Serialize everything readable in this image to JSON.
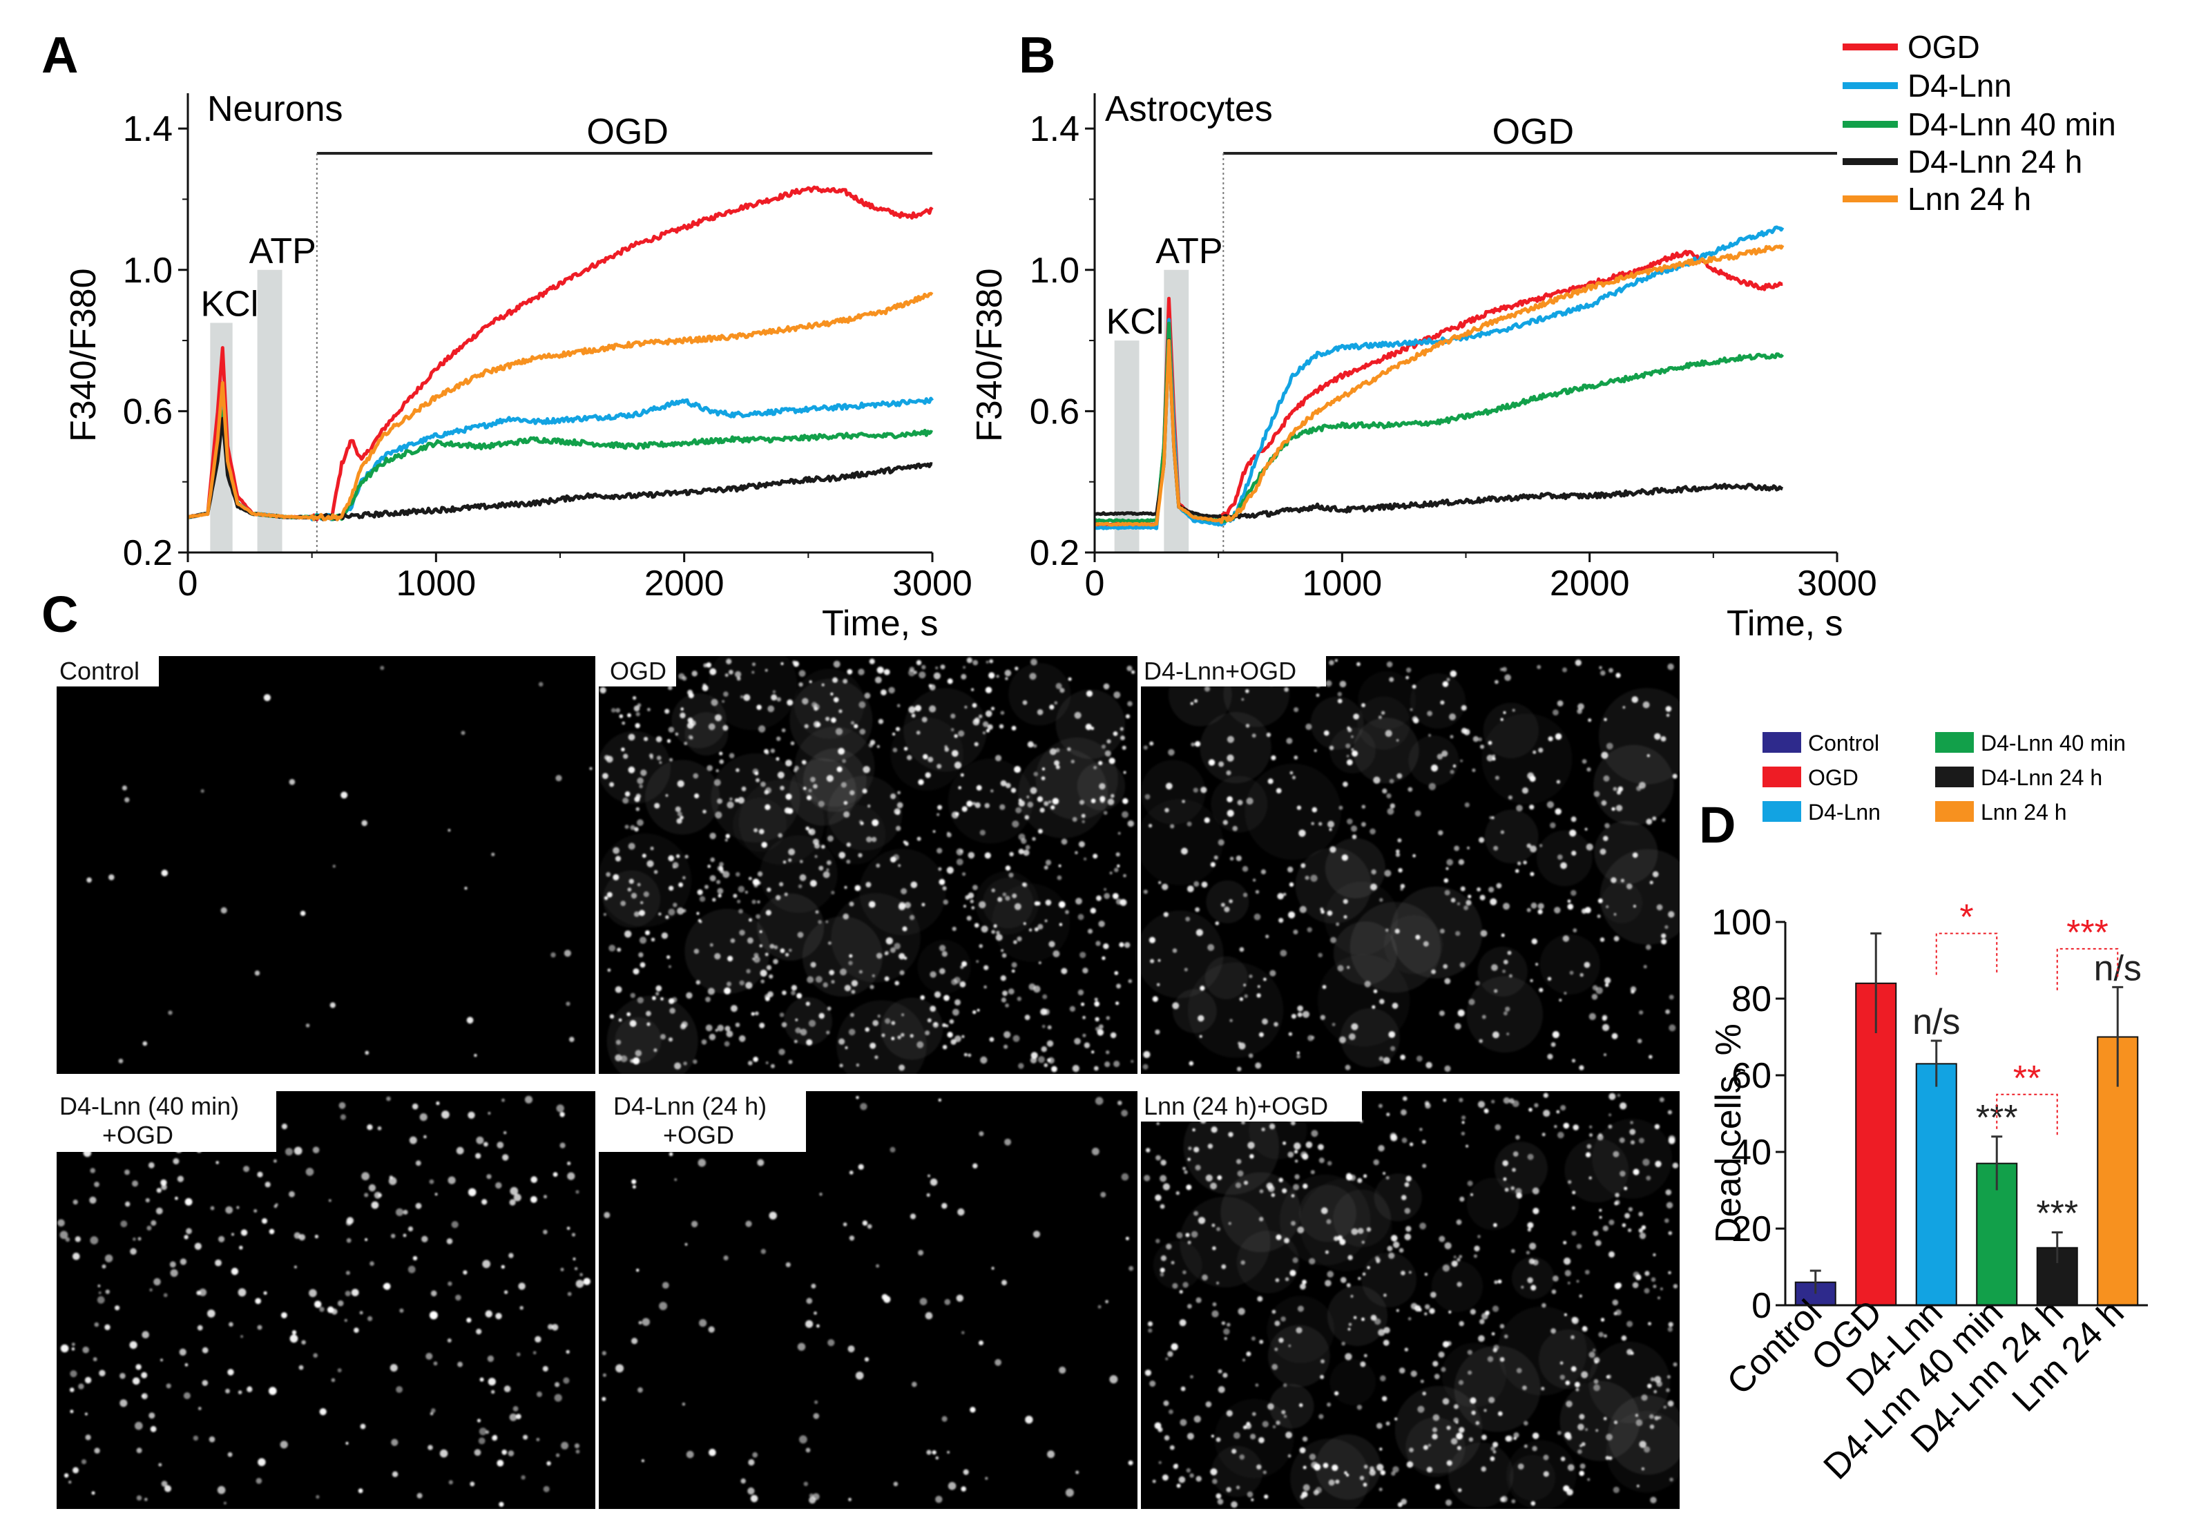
{
  "figure": {
    "panel_letters": [
      "A",
      "B",
      "C",
      "D"
    ]
  },
  "legend_AB": {
    "entries": [
      {
        "label": "OGD",
        "color": "#ee1c25"
      },
      {
        "label": "D4-Lnn",
        "color": "#12a3e2"
      },
      {
        "label": "D4-Lnn 40 min",
        "color": "#12a04a"
      },
      {
        "label": "D4-Lnn 24 h",
        "color": "#1a1a1a"
      },
      {
        "label": "Lnn 24 h",
        "color": "#f7911f"
      }
    ]
  },
  "chart_data": [
    {
      "id": "A",
      "type": "line",
      "cell_type": "Neurons",
      "xlabel": "Time, s",
      "ylabel": "F340/F380",
      "xlim": [
        0,
        3000
      ],
      "ylim": [
        0.2,
        1.5
      ],
      "xticks": [
        "0",
        "1000",
        "2000",
        "3000"
      ],
      "yticks": [
        "0.2",
        "0.6",
        "1.0",
        "1.4"
      ],
      "grey_bars": [
        {
          "label": "KCl",
          "x0": 90,
          "x1": 180,
          "top": 0.85
        },
        {
          "label": "ATP",
          "x0": 280,
          "x1": 380,
          "top": 1.0
        }
      ],
      "ogd_bar": {
        "label": "OGD",
        "x0": 520,
        "x1": 3000,
        "y": 1.33
      },
      "series": [
        {
          "name": "OGD",
          "color": "#ee1c25",
          "x": [
            0,
            80,
            120,
            140,
            160,
            200,
            260,
            400,
            580,
            620,
            660,
            700,
            800,
            1000,
            1200,
            1400,
            1600,
            1800,
            2000,
            2200,
            2400,
            2500,
            2650,
            2750,
            2900,
            3000
          ],
          "y": [
            0.3,
            0.31,
            0.6,
            0.78,
            0.5,
            0.36,
            0.31,
            0.3,
            0.3,
            0.45,
            0.52,
            0.46,
            0.56,
            0.72,
            0.84,
            0.92,
            1.0,
            1.07,
            1.12,
            1.17,
            1.21,
            1.23,
            1.22,
            1.18,
            1.15,
            1.17
          ]
        },
        {
          "name": "D4-Lnn",
          "color": "#12a3e2",
          "x": [
            0,
            80,
            120,
            140,
            160,
            200,
            260,
            400,
            620,
            660,
            700,
            800,
            1000,
            1200,
            1300,
            1400,
            1600,
            1800,
            2000,
            2100,
            2200,
            2400,
            2600,
            2800,
            3000
          ],
          "y": [
            0.3,
            0.31,
            0.5,
            0.65,
            0.45,
            0.34,
            0.31,
            0.3,
            0.3,
            0.33,
            0.4,
            0.48,
            0.53,
            0.56,
            0.58,
            0.57,
            0.58,
            0.59,
            0.63,
            0.6,
            0.59,
            0.6,
            0.61,
            0.62,
            0.63
          ]
        },
        {
          "name": "D4-Lnn 40 min",
          "color": "#12a04a",
          "x": [
            0,
            80,
            120,
            140,
            160,
            200,
            260,
            400,
            620,
            660,
            700,
            800,
            1000,
            1200,
            1400,
            1600,
            1800,
            2000,
            2200,
            2400,
            2600,
            2800,
            3000
          ],
          "y": [
            0.3,
            0.31,
            0.48,
            0.6,
            0.44,
            0.34,
            0.31,
            0.3,
            0.3,
            0.34,
            0.4,
            0.46,
            0.51,
            0.5,
            0.52,
            0.51,
            0.5,
            0.51,
            0.52,
            0.52,
            0.53,
            0.53,
            0.54
          ]
        },
        {
          "name": "D4-Lnn 24 h",
          "color": "#1a1a1a",
          "x": [
            0,
            80,
            120,
            140,
            160,
            200,
            260,
            400,
            600,
            800,
            1000,
            1200,
            1400,
            1600,
            1800,
            2000,
            2200,
            2400,
            2600,
            2800,
            3000
          ],
          "y": [
            0.3,
            0.31,
            0.46,
            0.58,
            0.42,
            0.33,
            0.31,
            0.3,
            0.3,
            0.31,
            0.32,
            0.33,
            0.34,
            0.36,
            0.36,
            0.37,
            0.38,
            0.4,
            0.41,
            0.43,
            0.45
          ]
        },
        {
          "name": "Lnn 24 h",
          "color": "#f7911f",
          "x": [
            0,
            80,
            120,
            140,
            160,
            200,
            260,
            400,
            620,
            660,
            700,
            800,
            1000,
            1200,
            1400,
            1600,
            1800,
            2000,
            2200,
            2400,
            2600,
            2800,
            2950,
            3000
          ],
          "y": [
            0.3,
            0.31,
            0.52,
            0.68,
            0.46,
            0.34,
            0.31,
            0.3,
            0.3,
            0.36,
            0.44,
            0.54,
            0.64,
            0.71,
            0.75,
            0.77,
            0.79,
            0.8,
            0.81,
            0.83,
            0.85,
            0.88,
            0.92,
            0.93
          ]
        }
      ]
    },
    {
      "id": "B",
      "type": "line",
      "cell_type": "Astrocytes",
      "xlabel": "Time, s",
      "ylabel": "F340/F380",
      "xlim": [
        0,
        3000
      ],
      "ylim": [
        0.2,
        1.5
      ],
      "xticks": [
        "0",
        "1000",
        "2000",
        "3000"
      ],
      "yticks": [
        "0.2",
        "0.6",
        "1.0",
        "1.4"
      ],
      "grey_bars": [
        {
          "label": "KCl",
          "x0": 80,
          "x1": 180,
          "top": 0.8
        },
        {
          "label": "ATP",
          "x0": 280,
          "x1": 380,
          "top": 1.0
        }
      ],
      "ogd_bar": {
        "label": "OGD",
        "x0": 520,
        "x1": 3000,
        "y": 1.33
      },
      "series": [
        {
          "name": "OGD",
          "color": "#ee1c25",
          "x": [
            0,
            250,
            280,
            300,
            320,
            340,
            400,
            500,
            560,
            600,
            640,
            700,
            800,
            900,
            1000,
            1200,
            1400,
            1600,
            1800,
            2000,
            2200,
            2300,
            2400,
            2500,
            2600,
            2700,
            2780
          ],
          "y": [
            0.28,
            0.28,
            0.5,
            0.92,
            0.6,
            0.34,
            0.3,
            0.29,
            0.33,
            0.42,
            0.47,
            0.5,
            0.6,
            0.66,
            0.7,
            0.76,
            0.82,
            0.88,
            0.92,
            0.96,
            1.0,
            1.03,
            1.05,
            1.0,
            0.97,
            0.95,
            0.96
          ]
        },
        {
          "name": "D4-Lnn",
          "color": "#12a3e2",
          "x": [
            0,
            250,
            280,
            300,
            320,
            340,
            400,
            500,
            560,
            600,
            650,
            700,
            800,
            900,
            1000,
            1200,
            1400,
            1600,
            1800,
            2000,
            2200,
            2400,
            2600,
            2780
          ],
          "y": [
            0.27,
            0.27,
            0.5,
            0.86,
            0.55,
            0.33,
            0.29,
            0.28,
            0.3,
            0.36,
            0.46,
            0.55,
            0.7,
            0.76,
            0.78,
            0.79,
            0.8,
            0.82,
            0.86,
            0.9,
            0.97,
            1.02,
            1.08,
            1.12
          ]
        },
        {
          "name": "D4-Lnn 40 min",
          "color": "#12a04a",
          "x": [
            0,
            250,
            280,
            300,
            320,
            340,
            400,
            500,
            560,
            600,
            650,
            700,
            800,
            900,
            1000,
            1200,
            1400,
            1600,
            1800,
            2000,
            2200,
            2400,
            2600,
            2780
          ],
          "y": [
            0.29,
            0.29,
            0.5,
            0.85,
            0.5,
            0.33,
            0.3,
            0.29,
            0.3,
            0.34,
            0.4,
            0.45,
            0.53,
            0.55,
            0.56,
            0.56,
            0.57,
            0.6,
            0.64,
            0.67,
            0.7,
            0.73,
            0.75,
            0.76
          ]
        },
        {
          "name": "D4-Lnn 24 h",
          "color": "#1a1a1a",
          "x": [
            0,
            250,
            280,
            300,
            320,
            340,
            400,
            500,
            560,
            700,
            900,
            1000,
            1200,
            1400,
            1600,
            1800,
            2000,
            2200,
            2400,
            2600,
            2780
          ],
          "y": [
            0.31,
            0.31,
            0.45,
            0.8,
            0.5,
            0.33,
            0.31,
            0.3,
            0.3,
            0.31,
            0.33,
            0.32,
            0.33,
            0.34,
            0.35,
            0.36,
            0.36,
            0.37,
            0.38,
            0.39,
            0.38
          ]
        },
        {
          "name": "Lnn 24 h",
          "color": "#f7911f",
          "x": [
            0,
            250,
            280,
            300,
            320,
            340,
            400,
            500,
            560,
            600,
            650,
            700,
            800,
            900,
            1000,
            1200,
            1400,
            1600,
            1800,
            2000,
            2200,
            2400,
            2600,
            2780
          ],
          "y": [
            0.28,
            0.28,
            0.45,
            0.8,
            0.5,
            0.33,
            0.3,
            0.29,
            0.3,
            0.33,
            0.38,
            0.45,
            0.54,
            0.6,
            0.64,
            0.72,
            0.79,
            0.85,
            0.9,
            0.95,
            0.99,
            1.02,
            1.04,
            1.07
          ]
        }
      ]
    },
    {
      "id": "D",
      "type": "bar",
      "ylabel": "Dead cells, %",
      "ylim": [
        0,
        100
      ],
      "yticks": [
        "0",
        "20",
        "40",
        "60",
        "80",
        "100"
      ],
      "categories": [
        "Control",
        "OGD",
        "D4-Lnn",
        "D4-Lnn 40 min",
        "D4-Lnn 24 h",
        "Lnn 24 h"
      ],
      "values": [
        6,
        84,
        63,
        37,
        15,
        70
      ],
      "errors": [
        3,
        13,
        6,
        7,
        4,
        13
      ],
      "colors": [
        "#2e2a8c",
        "#ee1c25",
        "#12a3e2",
        "#12a04a",
        "#1a1a1a",
        "#f7911f"
      ],
      "annotations": [
        "",
        "",
        "n/s",
        "***",
        "***",
        "n/s"
      ],
      "brackets": [
        {
          "label": "*",
          "from": 2,
          "to": 3,
          "color": "#ee1c25"
        },
        {
          "label": "**",
          "from": 3,
          "to": 4,
          "color": "#ee1c25"
        },
        {
          "label": "***",
          "from": 4,
          "to": 5,
          "color": "#ee1c25"
        }
      ],
      "legend": [
        {
          "label": "Control",
          "color": "#2e2a8c"
        },
        {
          "label": "OGD",
          "color": "#ee1c25"
        },
        {
          "label": "D4-Lnn",
          "color": "#12a3e2"
        },
        {
          "label": "D4-Lnn 40 min",
          "color": "#12a04a"
        },
        {
          "label": "D4-Lnn 24 h",
          "color": "#1a1a1a"
        },
        {
          "label": "Lnn 24 h",
          "color": "#f7911f"
        }
      ]
    }
  ],
  "micrographs": {
    "labels": [
      "Control",
      "OGD",
      "D4-Lnn+OGD",
      "D4-Lnn (40 min)\n+OGD",
      "D4-Lnn (24 h)\n+OGD",
      "Lnn (24 h)+OGD"
    ],
    "relative_density": [
      0.04,
      1.0,
      0.55,
      0.4,
      0.15,
      0.75
    ]
  }
}
